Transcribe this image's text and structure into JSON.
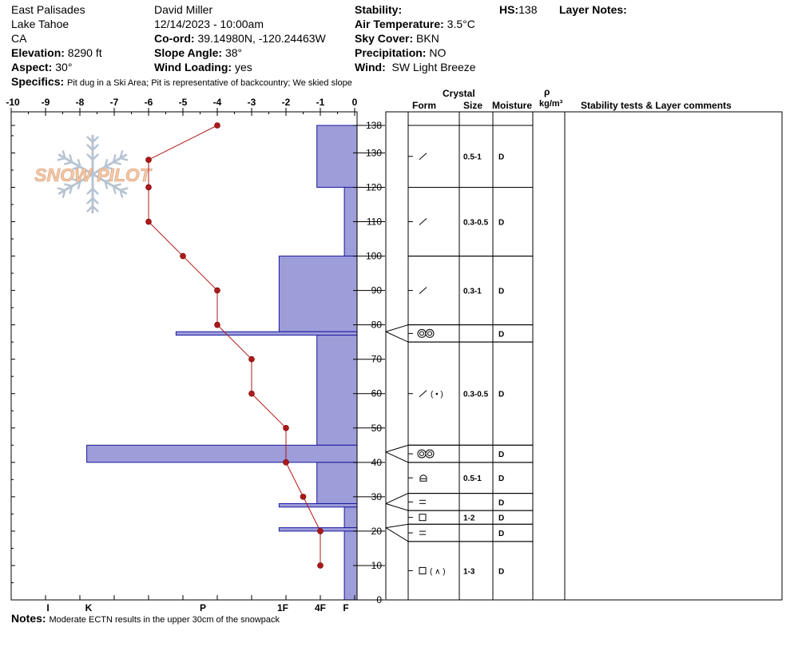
{
  "header": {
    "location": "East Palisades",
    "area": "Lake Tahoe",
    "state": "CA",
    "elevation_label": "Elevation:",
    "elevation_value": "8290 ft",
    "aspect_label": "Aspect:",
    "aspect_value": "30°",
    "observer": "David Miller",
    "datetime": "12/14/2023 - 10:00am",
    "coord_label": "Co-ord:",
    "coord_value": "39.14980N, -120.24463W",
    "slope_label": "Slope Angle:",
    "slope_value": "38°",
    "wind_loading_label": "Wind Loading:",
    "wind_loading_value": "yes",
    "stability_label": "Stability:",
    "air_temp_label": "Air Temperature:",
    "air_temp_value": "3.5°C",
    "sky_label": "Sky Cover:",
    "sky_value": "BKN",
    "precip_label": "Precipitation:",
    "precip_value": "NO",
    "wind_label": "Wind:",
    "wind_value": "SW Light Breeze",
    "hs_label": "HS:",
    "hs_value": "138",
    "layer_notes_label": "Layer Notes:",
    "specifics_label": "Specifics:",
    "specifics_value": "Pit dug in a Ski Area;  Pit is representative of backcountry;  We skied slope",
    "notes_label": "Notes:",
    "notes_value": "Moderate ECTN results in the upper 30cm of the snowpack",
    "logo_text": "SNOW PILOT"
  },
  "columns": {
    "crystal": "Crystal",
    "form": "Form",
    "size": "Size",
    "moisture": "Moisture",
    "rho": "ρ",
    "density_unit": "kg/m³",
    "comments": "Stability tests & Layer comments"
  },
  "colors": {
    "hardness_fill": "#9d9dd9",
    "hardness_stroke": "#1a1aa0",
    "temp_line": "#b01818",
    "temp_dot": "#b01818",
    "logo": "#f2c9a9",
    "flake": "#b8c4d2"
  },
  "chart_data": {
    "type": "snow-profile",
    "temperature_axis": {
      "range": [
        -10,
        0
      ],
      "tick_labels": [
        "-10",
        "-9",
        "-8",
        "-7",
        "-6",
        "-5",
        "-4",
        "-3",
        "-2",
        "-1",
        "0"
      ]
    },
    "hardness_axis": {
      "tick_labels": [
        "I",
        "K",
        "P",
        "1F",
        "4F",
        "F"
      ]
    },
    "height_axis": {
      "range": [
        0,
        138
      ],
      "tick_labels": [
        "0",
        "10",
        "20",
        "30",
        "40",
        "50",
        "60",
        "70",
        "80",
        "90",
        "100",
        "110",
        "120",
        "130",
        "138"
      ]
    },
    "temperature_profile": [
      {
        "height": 138,
        "temp": -4
      },
      {
        "height": 128,
        "temp": -6
      },
      {
        "height": 120,
        "temp": -6
      },
      {
        "height": 110,
        "temp": -6
      },
      {
        "height": 100,
        "temp": -5
      },
      {
        "height": 90,
        "temp": -4
      },
      {
        "height": 80,
        "temp": -4
      },
      {
        "height": 70,
        "temp": -3
      },
      {
        "height": 60,
        "temp": -3
      },
      {
        "height": 50,
        "temp": -2
      },
      {
        "height": 40,
        "temp": -2
      },
      {
        "height": 30,
        "temp": -1.5
      },
      {
        "height": 20,
        "temp": -1
      },
      {
        "height": 10,
        "temp": -1
      }
    ],
    "hardness_layers": [
      {
        "bottom": 120,
        "top": 138,
        "hardness_temp_equiv": -1.1
      },
      {
        "bottom": 100,
        "top": 120,
        "hardness_temp_equiv": -0.3
      },
      {
        "bottom": 78,
        "top": 100,
        "hardness_temp_equiv": -2.2
      },
      {
        "bottom": 77,
        "top": 78,
        "hardness_temp_equiv": -5.2
      },
      {
        "bottom": 45,
        "top": 77,
        "hardness_temp_equiv": -1.1
      },
      {
        "bottom": 40,
        "top": 45,
        "hardness_temp_equiv": -7.8
      },
      {
        "bottom": 28,
        "top": 40,
        "hardness_temp_equiv": -1.1
      },
      {
        "bottom": 27,
        "top": 28,
        "hardness_temp_equiv": -2.2
      },
      {
        "bottom": 21,
        "top": 27,
        "hardness_temp_equiv": -0.3
      },
      {
        "bottom": 20,
        "top": 21,
        "hardness_temp_equiv": -2.2
      },
      {
        "bottom": 0,
        "top": 20,
        "hardness_temp_equiv": -0.3
      }
    ],
    "layer_table_rows": [
      {
        "top": 138,
        "bottom": 120,
        "form": "slash",
        "size": "0.5-1",
        "moisture": "D"
      },
      {
        "top": 120,
        "bottom": 100,
        "form": "slash",
        "size": "0.3-0.5",
        "moisture": "D"
      },
      {
        "top": 100,
        "bottom": 80,
        "form": "slash",
        "size": "0.3-1",
        "moisture": "D"
      },
      {
        "top": 80,
        "bottom": 75,
        "form": "double-circle",
        "size": "",
        "moisture": "D"
      },
      {
        "top": 75,
        "bottom": 45,
        "form": "slash-paren-dot",
        "size": "0.3-0.5",
        "moisture": "D"
      },
      {
        "top": 45,
        "bottom": 40,
        "form": "double-circle",
        "size": "",
        "moisture": "D"
      },
      {
        "top": 40,
        "bottom": 31,
        "form": "cup",
        "size": "0.5-1",
        "moisture": "D"
      },
      {
        "top": 31,
        "bottom": 26,
        "form": "equals",
        "size": "",
        "moisture": "D"
      },
      {
        "top": 26,
        "bottom": 22,
        "form": "square",
        "size": "1-2",
        "moisture": "D"
      },
      {
        "top": 22,
        "bottom": 17,
        "form": "equals",
        "size": "",
        "moisture": "D"
      },
      {
        "top": 17,
        "bottom": 0,
        "form": "square-paren-caret",
        "size": "1-3",
        "moisture": "D"
      }
    ],
    "depth_connectors": [
      {
        "left": 78,
        "right_top": 80,
        "right_bottom": 75
      },
      {
        "left": 43,
        "right_top": 45,
        "right_bottom": 40
      },
      {
        "left": 28,
        "right_top": 31,
        "right_bottom": 26
      },
      {
        "left": 21,
        "right_top": 22,
        "right_bottom": 17
      }
    ]
  }
}
